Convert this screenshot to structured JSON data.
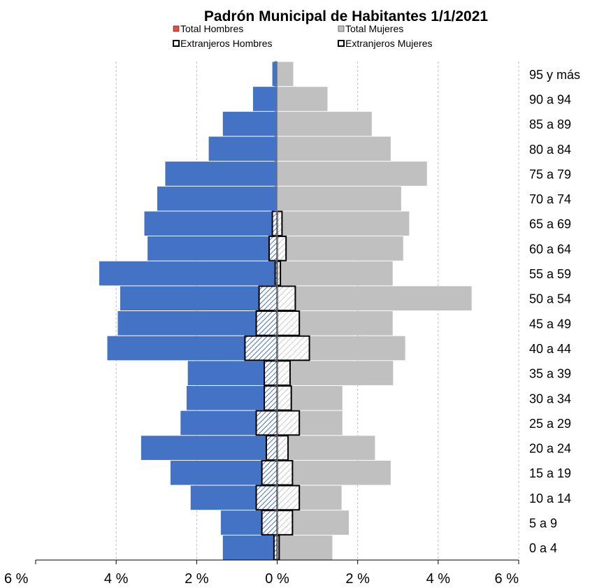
{
  "chart_data": {
    "type": "bar",
    "title": "Padrón Municipal  de Habitantes 1/1/2021",
    "xlim": [
      -6,
      6
    ],
    "xticks": [
      "6 %",
      "4 %",
      "2 %",
      "0 %",
      "2 %",
      "4 %",
      "6 %"
    ],
    "grid": true,
    "legend_position": "top",
    "categories": [
      "0 a 4",
      "5 a 9",
      "10 a 14",
      "15 a 19",
      "20 a 24",
      "25 a 29",
      "30 a 34",
      "35 a 39",
      "40 a 44",
      "45 a 49",
      "50 a 54",
      "55 a 59",
      "60 a 64",
      "65 a 69",
      "70 a 74",
      "75 a 79",
      "80 a 84",
      "85 a 89",
      "90 a 94",
      "95 y más"
    ],
    "series": [
      {
        "name": "Total Hombres",
        "color": "#4472c4",
        "side": "left",
        "values": [
          1.35,
          1.4,
          2.15,
          2.65,
          3.38,
          2.4,
          2.25,
          2.22,
          4.22,
          3.96,
          3.9,
          4.42,
          3.22,
          3.3,
          2.98,
          2.78,
          1.7,
          1.35,
          0.6,
          0.12
        ]
      },
      {
        "name": "Total Mujeres",
        "color": "#c0c0c0",
        "side": "right",
        "values": [
          1.37,
          1.78,
          1.6,
          2.82,
          2.43,
          1.62,
          1.62,
          2.88,
          3.18,
          2.87,
          4.83,
          2.87,
          3.13,
          3.28,
          3.08,
          3.72,
          2.82,
          2.35,
          1.25,
          0.4
        ]
      },
      {
        "name": "Extranjeros Hombres",
        "color": "#4472c4",
        "side": "left",
        "values": [
          0.08,
          0.38,
          0.52,
          0.38,
          0.27,
          0.52,
          0.32,
          0.32,
          0.8,
          0.52,
          0.45,
          0.05,
          0.2,
          0.12,
          0.0,
          0.0,
          0.0,
          0.0,
          0.0,
          0.0
        ]
      },
      {
        "name": "Extranjeros Mujeres",
        "color": "#808080",
        "side": "right",
        "values": [
          0.05,
          0.38,
          0.55,
          0.38,
          0.27,
          0.55,
          0.35,
          0.32,
          0.8,
          0.55,
          0.45,
          0.08,
          0.22,
          0.12,
          0.0,
          0.0,
          0.0,
          0.0,
          0.0,
          0.0
        ]
      }
    ]
  }
}
